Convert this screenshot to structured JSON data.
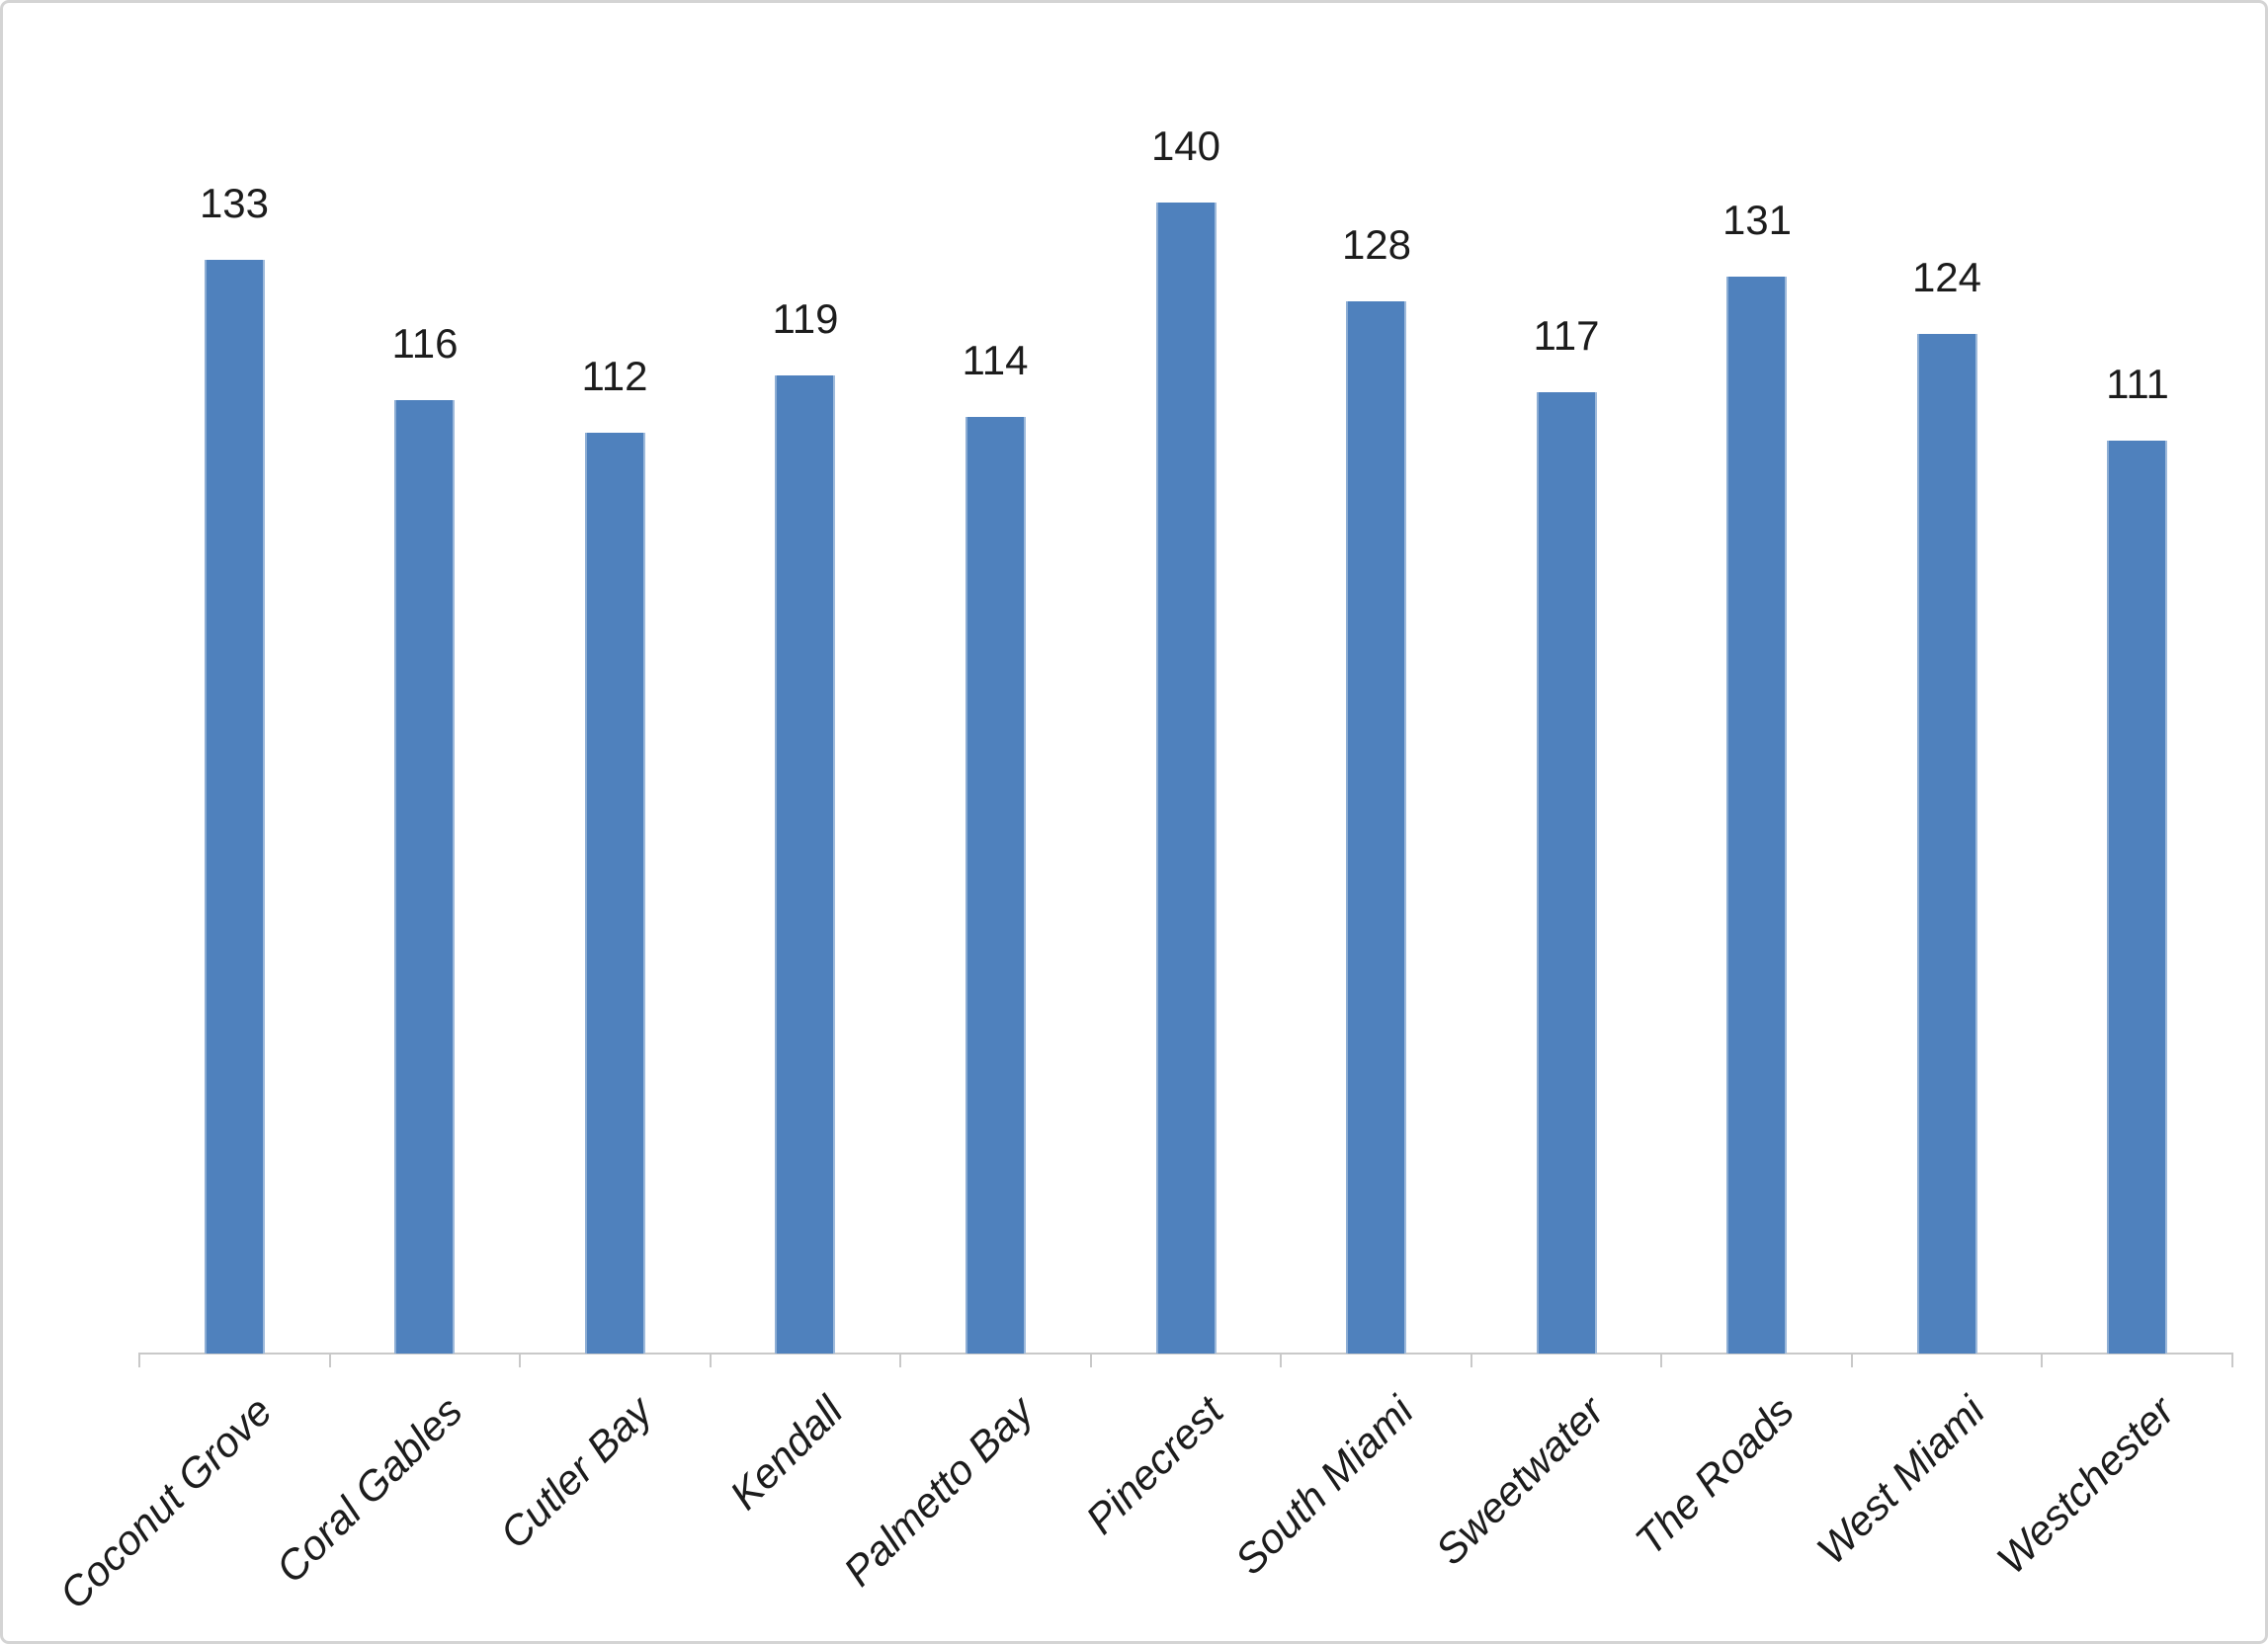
{
  "chart_data": {
    "type": "bar",
    "title": "",
    "xlabel": "",
    "ylabel": "",
    "categories": [
      "Coconut Grove",
      "Coral Gables",
      "Cutler Bay",
      "Kendall",
      "Palmetto Bay",
      "Pinecrest",
      "South Miami",
      "Sweetwater",
      "The Roads",
      "West Miami",
      "Westchester"
    ],
    "values": [
      133,
      116,
      112,
      119,
      114,
      140,
      128,
      117,
      131,
      124,
      111
    ],
    "series_name": "",
    "data_labels_shown": true,
    "legend": false,
    "gridlines": false,
    "y_axis_shown": false,
    "ylim": [
      0,
      150
    ],
    "bar_color": "#4f81bd",
    "label_color": "#1c1c1c",
    "axis_color": "#c9c9c9",
    "frame_color": "#d4d4d4",
    "background_color": "#ffffff"
  }
}
